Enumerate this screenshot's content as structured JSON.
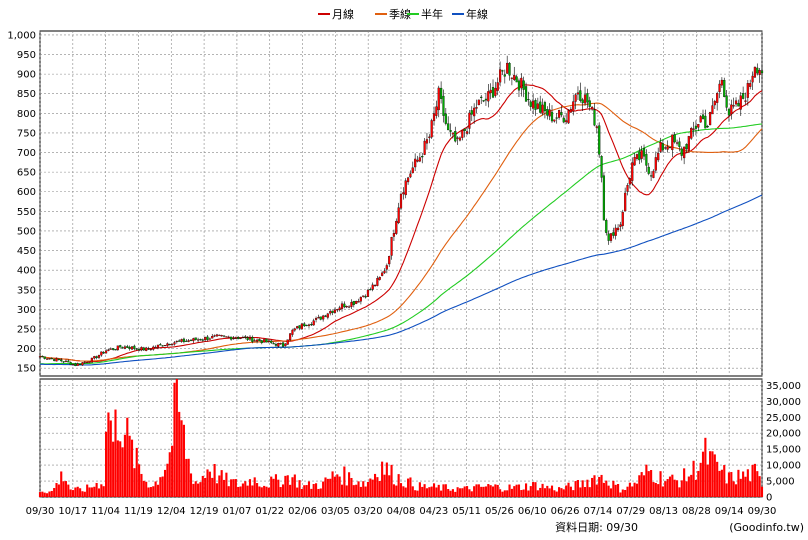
{
  "legend": {
    "items": [
      {
        "label": "月線",
        "color": "#cc0000"
      },
      {
        "label": "季線",
        "color": "#e06010"
      },
      {
        "label": "半年",
        "color": "#22cc22"
      },
      {
        "label": "年線",
        "color": "#1050c0"
      }
    ]
  },
  "footer": {
    "source_label": "資料日期: 09/30",
    "site_label": "(Goodinfo.tw)"
  },
  "colors": {
    "up": "#ff0000",
    "down": "#00aa00",
    "volume": "#ff0000",
    "grid": "#888888"
  },
  "chart_data": [
    {
      "type": "candlestick",
      "title": "",
      "ylim": [
        130,
        1010
      ],
      "yticks": [
        150,
        200,
        250,
        300,
        350,
        400,
        450,
        500,
        550,
        600,
        650,
        700,
        750,
        800,
        850,
        900,
        950,
        1000
      ],
      "ytick_labels": [
        "150",
        "200",
        "250",
        "300",
        "350",
        "400",
        "450",
        "500",
        "550",
        "600",
        "650",
        "700",
        "750",
        "800",
        "850",
        "900",
        "950",
        "1,000"
      ],
      "grid": true,
      "legend_position": "top-center",
      "x_labels": [
        "09/30",
        "10/17",
        "11/04",
        "11/19",
        "12/04",
        "12/19",
        "01/07",
        "01/22",
        "02/06",
        "03/05",
        "03/20",
        "04/08",
        "04/23",
        "05/11",
        "05/26",
        "06/10",
        "06/26",
        "07/14",
        "07/29",
        "08/13",
        "08/28",
        "09/14",
        "09/30"
      ],
      "close_anchors": [
        [
          0,
          180
        ],
        [
          10,
          168
        ],
        [
          15,
          158
        ],
        [
          22,
          172
        ],
        [
          28,
          195
        ],
        [
          35,
          205
        ],
        [
          45,
          198
        ],
        [
          55,
          215
        ],
        [
          65,
          222
        ],
        [
          75,
          230
        ],
        [
          85,
          228
        ],
        [
          95,
          218
        ],
        [
          103,
          208
        ],
        [
          107,
          245
        ],
        [
          112,
          262
        ],
        [
          118,
          275
        ],
        [
          122,
          292
        ],
        [
          128,
          310
        ],
        [
          133,
          318
        ],
        [
          139,
          345
        ],
        [
          144,
          378
        ],
        [
          147,
          415
        ],
        [
          150,
          505
        ],
        [
          153,
          600
        ],
        [
          157,
          650
        ],
        [
          161,
          690
        ],
        [
          165,
          740
        ],
        [
          169,
          845
        ],
        [
          173,
          750
        ],
        [
          177,
          720
        ],
        [
          181,
          770
        ],
        [
          185,
          820
        ],
        [
          190,
          840
        ],
        [
          194,
          880
        ],
        [
          198,
          920
        ],
        [
          203,
          880
        ],
        [
          208,
          830
        ],
        [
          213,
          805
        ],
        [
          218,
          790
        ],
        [
          223,
          795
        ],
        [
          228,
          860
        ],
        [
          232,
          830
        ],
        [
          236,
          770
        ],
        [
          238,
          640
        ],
        [
          239,
          540
        ],
        [
          241,
          470
        ],
        [
          243,
          500
        ],
        [
          246,
          520
        ],
        [
          248,
          590
        ],
        [
          251,
          670
        ],
        [
          255,
          690
        ],
        [
          259,
          650
        ],
        [
          263,
          710
        ],
        [
          268,
          730
        ],
        [
          272,
          700
        ],
        [
          276,
          745
        ],
        [
          280,
          790
        ],
        [
          283,
          770
        ],
        [
          286,
          830
        ],
        [
          289,
          890
        ],
        [
          292,
          800
        ],
        [
          296,
          820
        ],
        [
          300,
          860
        ],
        [
          303,
          930
        ],
        [
          306,
          910
        ]
      ],
      "ma_series": [
        {
          "name": "月線",
          "period": 20,
          "color": "#cc0000"
        },
        {
          "name": "季線",
          "period": 60,
          "color": "#e06010"
        },
        {
          "name": "半年",
          "period": 120,
          "color": "#22cc22"
        },
        {
          "name": "年線",
          "period": 240,
          "color": "#1050c0"
        }
      ]
    },
    {
      "type": "bar",
      "title": "",
      "ylim": [
        0,
        37000
      ],
      "yticks": [
        0,
        5000,
        10000,
        15000,
        20000,
        25000,
        30000,
        35000
      ],
      "ytick_labels": [
        "0",
        "5,000",
        "10,000",
        "15,000",
        "20,000",
        "25,000",
        "30,000",
        "35,000"
      ],
      "grid": true,
      "volume_peaks": [
        [
          0,
          2500
        ],
        [
          5,
          2000
        ],
        [
          10,
          9000
        ],
        [
          13,
          3000
        ],
        [
          18,
          2500
        ],
        [
          27,
          6000
        ],
        [
          29,
          37000
        ],
        [
          31,
          20000
        ],
        [
          33,
          32000
        ],
        [
          35,
          29000
        ],
        [
          37,
          22000
        ],
        [
          40,
          15000
        ],
        [
          44,
          7000
        ],
        [
          48,
          4000
        ],
        [
          52,
          10000
        ],
        [
          55,
          16000
        ],
        [
          58,
          37000
        ],
        [
          61,
          22000
        ],
        [
          64,
          9000
        ],
        [
          67,
          5000
        ],
        [
          72,
          12000
        ],
        [
          75,
          8000
        ],
        [
          80,
          6000
        ],
        [
          85,
          4500
        ],
        [
          90,
          7000
        ],
        [
          95,
          5000
        ],
        [
          100,
          6000
        ],
        [
          106,
          8000
        ],
        [
          112,
          4000
        ],
        [
          120,
          5000
        ],
        [
          126,
          9000
        ],
        [
          132,
          7000
        ],
        [
          138,
          5000
        ],
        [
          145,
          12000
        ],
        [
          150,
          8000
        ],
        [
          155,
          6000
        ],
        [
          160,
          4000
        ],
        [
          170,
          3500
        ],
        [
          180,
          3000
        ],
        [
          190,
          4000
        ],
        [
          200,
          3500
        ],
        [
          210,
          4500
        ],
        [
          220,
          3000
        ],
        [
          230,
          5000
        ],
        [
          236,
          8000
        ],
        [
          240,
          6500
        ],
        [
          246,
          3000
        ],
        [
          252,
          5000
        ],
        [
          258,
          10000
        ],
        [
          264,
          7000
        ],
        [
          270,
          6000
        ],
        [
          276,
          9000
        ],
        [
          282,
          16000
        ],
        [
          286,
          12000
        ],
        [
          292,
          7000
        ],
        [
          298,
          8000
        ],
        [
          303,
          9000
        ],
        [
          306,
          5000
        ]
      ]
    }
  ]
}
